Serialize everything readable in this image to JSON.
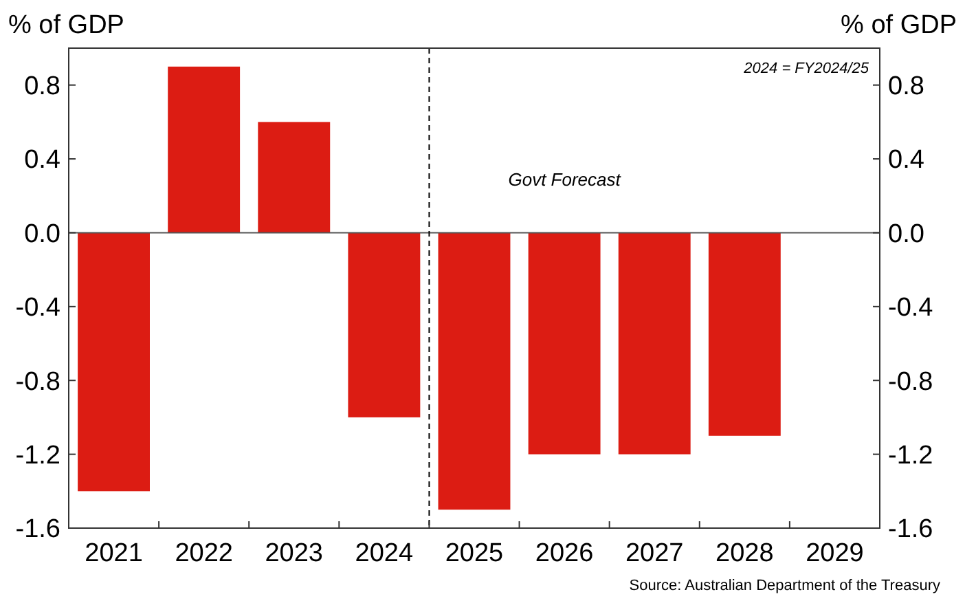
{
  "chart_data": {
    "type": "bar",
    "ylabel": "% of GDP",
    "y2label": "% of GDP",
    "categories": [
      "2021",
      "2022",
      "2023",
      "2024",
      "2025",
      "2026",
      "2027",
      "2028",
      "2029"
    ],
    "values": [
      -1.4,
      0.9,
      0.6,
      -1.0,
      -1.5,
      -1.2,
      -1.2,
      -1.1,
      null
    ],
    "color": "#dc1c13",
    "ylim": [
      -1.6,
      1.0
    ],
    "yticks": [
      -1.6,
      -1.2,
      -0.8,
      -0.4,
      {
        "value": 0,
        "label": "0.0"
      },
      0.4,
      0.8
    ],
    "y2lim": [
      -1.6,
      1.0
    ],
    "y2ticks": [
      -1.6,
      -1.2,
      -0.8,
      -0.4,
      {
        "value": 0,
        "label": "0.0"
      },
      0.4,
      0.8
    ],
    "ref_lines": [
      {
        "axis": "x",
        "value": "2025",
        "line_style": "dashed",
        "color": "#000000"
      }
    ],
    "annotations": [
      "2024 = FY2024/25",
      "Govt Forecast",
      "Source: Australian Department of the Treasury"
    ]
  }
}
